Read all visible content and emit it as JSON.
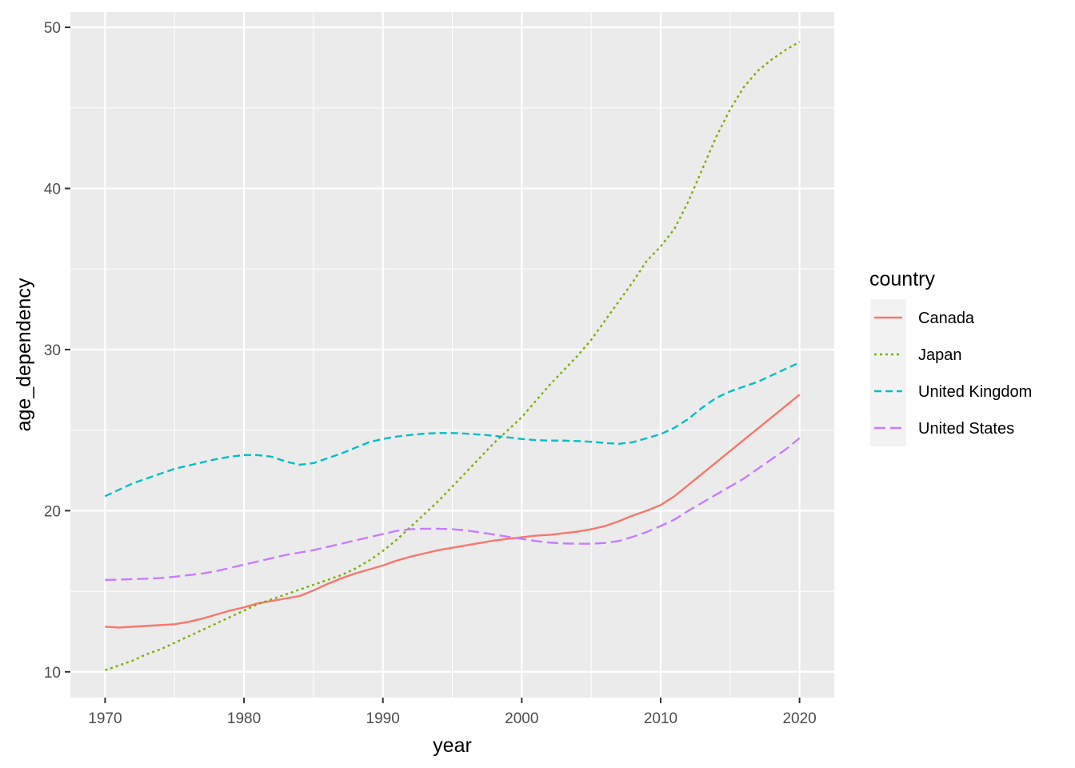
{
  "chart_data": {
    "type": "line",
    "xlabel": "year",
    "ylabel": "age_dependency",
    "xlim": [
      1967.5,
      2022.5
    ],
    "ylim": [
      8.4,
      50.95
    ],
    "xticks": [
      "1970",
      "1980",
      "1990",
      "2000",
      "2010",
      "2020"
    ],
    "yticks": [
      "10",
      "20",
      "30",
      "40",
      "50"
    ],
    "grid": true,
    "legend": {
      "title": "country",
      "position": "right"
    },
    "x": [
      1970,
      1971,
      1972,
      1973,
      1974,
      1975,
      1976,
      1977,
      1978,
      1979,
      1980,
      1981,
      1982,
      1983,
      1984,
      1985,
      1986,
      1987,
      1988,
      1989,
      1990,
      1991,
      1992,
      1993,
      1994,
      1995,
      1996,
      1997,
      1998,
      1999,
      2000,
      2001,
      2002,
      2003,
      2004,
      2005,
      2006,
      2007,
      2008,
      2009,
      2010,
      2011,
      2012,
      2013,
      2014,
      2015,
      2016,
      2017,
      2018,
      2019,
      2020
    ],
    "series": [
      {
        "name": "Canada",
        "color": "#F8766D",
        "dash": "solid",
        "values": [
          12.8,
          12.75,
          12.8,
          12.85,
          12.9,
          12.95,
          13.1,
          13.3,
          13.55,
          13.8,
          14.0,
          14.25,
          14.4,
          14.55,
          14.7,
          15.05,
          15.45,
          15.8,
          16.1,
          16.35,
          16.6,
          16.9,
          17.15,
          17.35,
          17.55,
          17.7,
          17.85,
          18.0,
          18.15,
          18.25,
          18.35,
          18.45,
          18.5,
          18.6,
          18.7,
          18.85,
          19.05,
          19.35,
          19.7,
          20.0,
          20.35,
          20.9,
          21.6,
          22.3,
          23.0,
          23.7,
          24.4,
          25.1,
          25.8,
          26.5,
          27.2
        ]
      },
      {
        "name": "Japan",
        "color": "#7CAE00",
        "dash": "dotted",
        "values": [
          10.1,
          10.4,
          10.7,
          11.1,
          11.4,
          11.8,
          12.2,
          12.6,
          13.0,
          13.4,
          13.8,
          14.2,
          14.5,
          14.8,
          15.1,
          15.4,
          15.7,
          16.0,
          16.4,
          16.9,
          17.5,
          18.2,
          19.0,
          19.8,
          20.6,
          21.5,
          22.4,
          23.3,
          24.2,
          25.0,
          25.8,
          26.8,
          27.8,
          28.7,
          29.6,
          30.6,
          31.8,
          33.0,
          34.2,
          35.5,
          36.4,
          37.5,
          39.2,
          41.2,
          43.2,
          44.9,
          46.3,
          47.3,
          48.0,
          48.6,
          49.1
        ]
      },
      {
        "name": "United Kingdom",
        "color": "#00BFC4",
        "dash": "dashed",
        "values": [
          20.9,
          21.3,
          21.7,
          22.0,
          22.3,
          22.6,
          22.8,
          23.0,
          23.2,
          23.35,
          23.45,
          23.45,
          23.35,
          23.05,
          22.85,
          22.95,
          23.25,
          23.55,
          23.9,
          24.25,
          24.45,
          24.6,
          24.7,
          24.78,
          24.82,
          24.82,
          24.78,
          24.72,
          24.65,
          24.55,
          24.45,
          24.38,
          24.35,
          24.35,
          24.32,
          24.28,
          24.2,
          24.15,
          24.25,
          24.5,
          24.75,
          25.15,
          25.7,
          26.4,
          27.0,
          27.4,
          27.7,
          28.0,
          28.4,
          28.8,
          29.2
        ]
      },
      {
        "name": "United States",
        "color": "#C77CFF",
        "dash": "longdash",
        "values": [
          15.7,
          15.72,
          15.75,
          15.78,
          15.82,
          15.9,
          16.0,
          16.1,
          16.25,
          16.45,
          16.65,
          16.85,
          17.05,
          17.25,
          17.4,
          17.55,
          17.75,
          17.95,
          18.15,
          18.35,
          18.55,
          18.75,
          18.85,
          18.88,
          18.88,
          18.85,
          18.78,
          18.65,
          18.52,
          18.38,
          18.25,
          18.12,
          18.02,
          17.97,
          17.95,
          17.95,
          18.0,
          18.12,
          18.38,
          18.68,
          19.05,
          19.45,
          20.0,
          20.5,
          21.0,
          21.5,
          22.0,
          22.6,
          23.2,
          23.8,
          24.5
        ]
      }
    ]
  }
}
